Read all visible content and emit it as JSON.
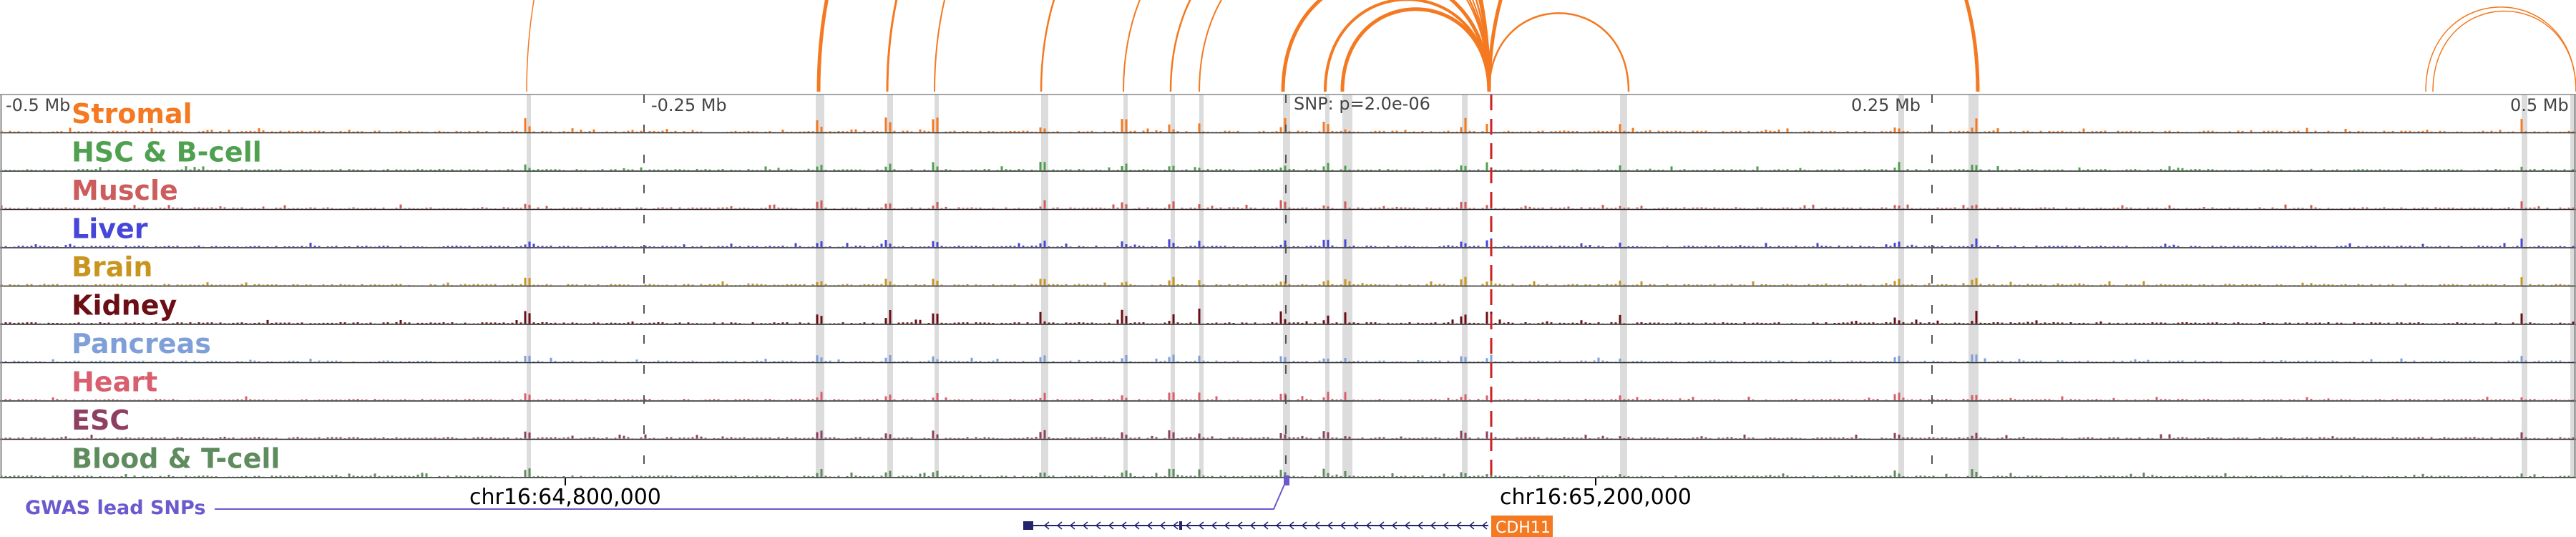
{
  "tracks": [
    {
      "label": "Stromal",
      "color": "#f47920"
    },
    {
      "label": "HSC & B-cell",
      "color": "#4fa04f"
    },
    {
      "label": "Muscle",
      "color": "#cd5c5c"
    },
    {
      "label": "Liver",
      "color": "#4646d8"
    },
    {
      "label": "Brain",
      "color": "#c8951e"
    },
    {
      "label": "Kidney",
      "color": "#6b0e16"
    },
    {
      "label": "Pancreas",
      "color": "#7f9fd8"
    },
    {
      "label": "Heart",
      "color": "#d8606e"
    },
    {
      "label": "ESC",
      "color": "#8e4062"
    },
    {
      "label": "Blood & T-cell",
      "color": "#5e8c5e"
    }
  ],
  "axis": {
    "ticks": [
      {
        "label": "-0.5 Mb",
        "mb": -0.5
      },
      {
        "label": "-0.25 Mb",
        "mb": -0.25
      },
      {
        "label": "0.25 Mb",
        "mb": 0.25
      },
      {
        "label": "0.5 Mb",
        "mb": 0.5
      }
    ],
    "snp_label": "SNP: p=2.0e-06"
  },
  "coordinates": [
    "chr16:64,800,000",
    "chr16:65,200,000"
  ],
  "gwas": {
    "label": "GWAS lead SNPs",
    "color": "#6a5acd"
  },
  "gene": {
    "name": "CDH11",
    "color": "#f47920",
    "strand": "minus"
  },
  "colors": {
    "loop": "#f47920",
    "snp_line": "#cc2222",
    "highlight": "#dcdcdc",
    "gene_body": "#23236e"
  }
}
